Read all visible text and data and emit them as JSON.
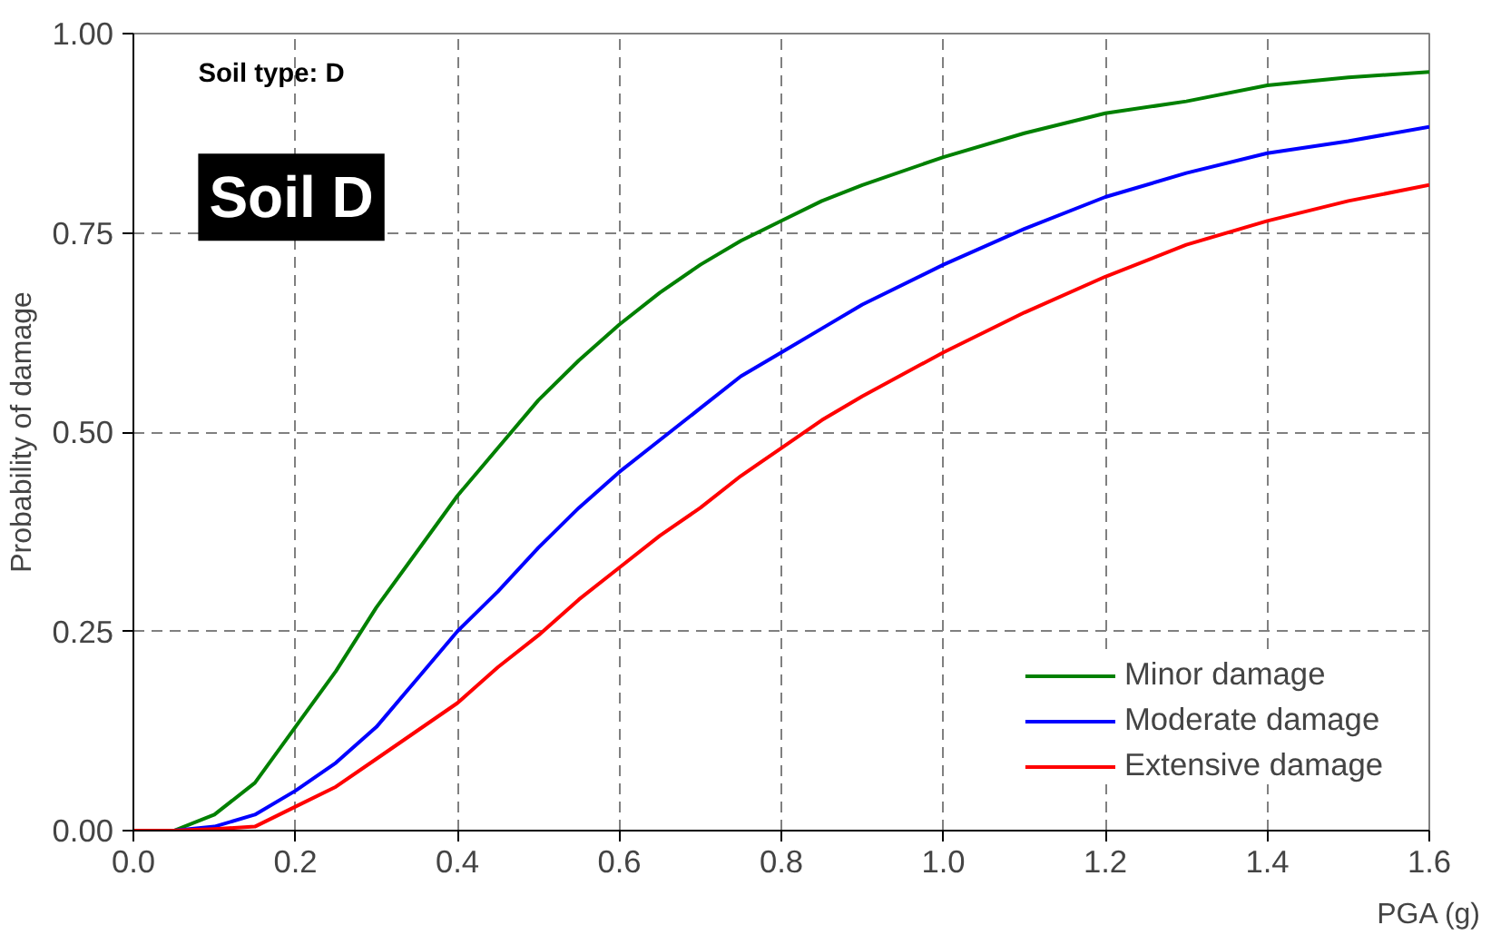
{
  "chart_data": {
    "type": "line",
    "xlabel": "PGA (g)",
    "ylabel": "Probability of damage",
    "annotations": [
      "Soil type: D",
      "Soil D"
    ],
    "x": [
      0,
      0.05,
      0.1,
      0.15,
      0.2,
      0.25,
      0.3,
      0.35,
      0.4,
      0.45,
      0.5,
      0.55,
      0.6,
      0.65,
      0.7,
      0.75,
      0.8,
      0.85,
      0.9,
      1.0,
      1.1,
      1.2,
      1.3,
      1.4,
      1.5,
      1.6
    ],
    "series": [
      {
        "name": "Minor damage",
        "color": "#008000",
        "values": [
          0,
          0,
          0.02,
          0.06,
          0.13,
          0.2,
          0.28,
          0.35,
          0.42,
          0.48,
          0.54,
          0.59,
          0.635,
          0.675,
          0.71,
          0.74,
          0.765,
          0.79,
          0.81,
          0.845,
          0.875,
          0.9,
          0.915,
          0.935,
          0.945,
          0.952
        ]
      },
      {
        "name": "Moderate damage",
        "color": "#0000ff",
        "values": [
          0,
          0,
          0.005,
          0.02,
          0.05,
          0.085,
          0.13,
          0.19,
          0.25,
          0.3,
          0.355,
          0.405,
          0.45,
          0.49,
          0.53,
          0.57,
          0.6,
          0.63,
          0.66,
          0.71,
          0.755,
          0.795,
          0.825,
          0.85,
          0.865,
          0.883
        ]
      },
      {
        "name": "Extensive damage",
        "color": "#ff0000",
        "values": [
          0,
          0,
          0.002,
          0.005,
          0.03,
          0.055,
          0.09,
          0.125,
          0.16,
          0.205,
          0.245,
          0.29,
          0.33,
          0.37,
          0.405,
          0.445,
          0.48,
          0.515,
          0.545,
          0.6,
          0.65,
          0.695,
          0.735,
          0.765,
          0.79,
          0.81
        ]
      }
    ],
    "xlim": [
      0,
      1.6
    ],
    "ylim": [
      0,
      1
    ],
    "xticks": [
      {
        "value": 0,
        "label": "0.0"
      },
      0.2,
      0.4,
      0.6,
      0.8,
      {
        "value": 1,
        "label": "1.0"
      },
      1.2,
      1.4,
      1.6
    ],
    "yticks": [
      {
        "value": 0,
        "label": "0.00"
      },
      0.25,
      {
        "value": 0.5,
        "label": "0.50"
      },
      0.75,
      {
        "value": 1,
        "label": "1.00"
      }
    ],
    "grid": true,
    "legend": "bottom right",
    "line_style": "solid",
    "marker": "none"
  }
}
